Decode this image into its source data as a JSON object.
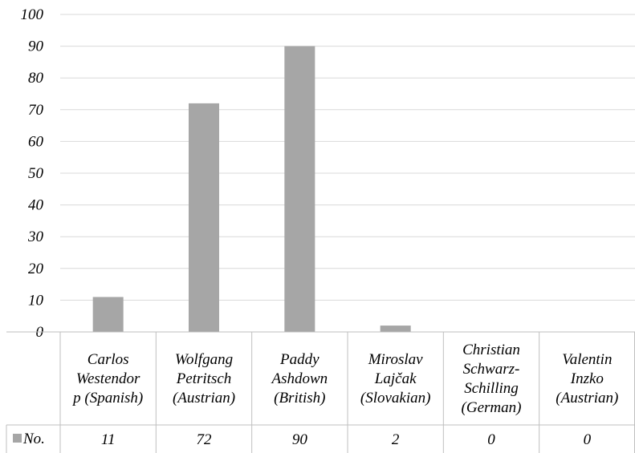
{
  "chart_data": {
    "type": "bar",
    "categories": [
      [
        "Carlos",
        "Westendor",
        "p (Spanish)"
      ],
      [
        "Wolfgang",
        "Petritsch",
        "(Austrian)"
      ],
      [
        "Paddy",
        "Ashdown",
        "(British)"
      ],
      [
        "Miroslav",
        "Lajčak",
        "(Slovakian)"
      ],
      [
        "Christian",
        "Schwarz-",
        "Schilling",
        "(German)"
      ],
      [
        "Valentin",
        "Inzko",
        "(Austrian)"
      ]
    ],
    "series": [
      {
        "name": "No.",
        "values": [
          11,
          72,
          90,
          2,
          0,
          0
        ]
      }
    ],
    "ylim": [
      0,
      100
    ],
    "yticks": [
      0,
      10,
      20,
      30,
      40,
      50,
      60,
      70,
      80,
      90,
      100
    ],
    "grid": true,
    "legend": "data-table",
    "colors": {
      "bar": "#a6a6a6",
      "grid": "#d9d9d9",
      "table_border": "#bfbfbf"
    }
  }
}
